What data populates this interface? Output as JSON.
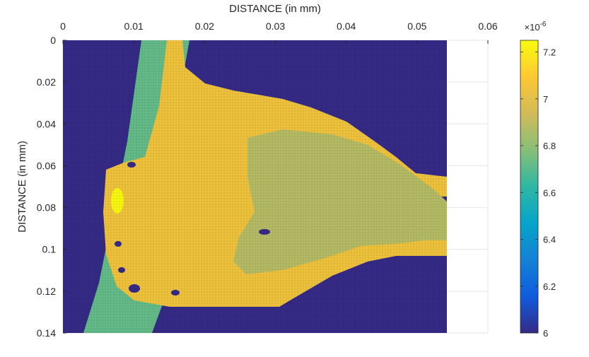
{
  "chart_data": {
    "type": "heatmap",
    "title": "",
    "xlabel": "DISTANCE (in mm)",
    "ylabel": "DISTANCE (in mm)",
    "xlim": [
      0,
      0.06
    ],
    "ylim": [
      0,
      0.14
    ],
    "x_axis_position": "top",
    "y_axis_direction": "reversed",
    "grid": true,
    "x_ticks": [
      "0",
      "0.01",
      "0.02",
      "0.03",
      "0.04",
      "0.05",
      "0.06"
    ],
    "y_ticks": [
      "0",
      "0.02",
      "0.04",
      "0.06",
      "0.08",
      "0.1",
      "0.12",
      "0.14"
    ],
    "data_x_extent": [
      0,
      0.054
    ],
    "colorbar": {
      "min": 6.0,
      "max": 7.25,
      "exponent_label": "×10",
      "exponent_power": "-6",
      "ticks": [
        "6",
        "6.2",
        "6.4",
        "6.6",
        "6.8",
        "7",
        "7.2"
      ],
      "colormap": "parula",
      "colors": [
        "#352a87",
        "#0f5cdd",
        "#1481d6",
        "#06a4ca",
        "#2eb7a4",
        "#87bf77",
        "#d1bb59",
        "#fec832",
        "#f9fb0e"
      ]
    },
    "regions": [
      {
        "name": "background",
        "value": 6.0
      },
      {
        "name": "left-strip",
        "value": 6.72
      },
      {
        "name": "main-body",
        "value": 7.05
      },
      {
        "name": "inner-core",
        "value": 6.88
      },
      {
        "name": "hot-spot",
        "value": 7.25
      }
    ]
  }
}
